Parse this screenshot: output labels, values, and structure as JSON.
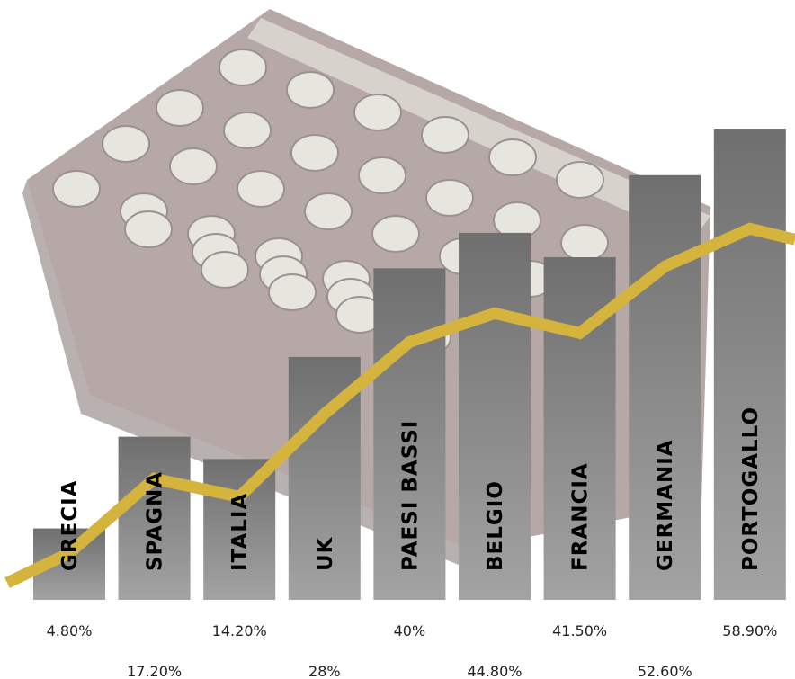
{
  "chart_data": {
    "type": "bar",
    "categories": [
      "GRECIA",
      "SPAGNA",
      "ITALIA",
      "UK",
      "PAESI BASSI",
      "BELGIO",
      "FRANCIA",
      "GERMANIA",
      "PORTOGALLO"
    ],
    "values": [
      4.8,
      17.2,
      14.2,
      28,
      40,
      44.8,
      41.5,
      52.6,
      58.9
    ],
    "value_labels": [
      "4.80%",
      "17.20%",
      "14.20%",
      "28%",
      "40%",
      "44.80%",
      "41.50%",
      "52.60%",
      "58.90%"
    ],
    "overlay_line": true,
    "colors": {
      "bar": "#8a8a8a",
      "bar_highlight": "#5c5c5c",
      "line": "#d4b43c"
    },
    "ylim": [
      0,
      60
    ],
    "grid": false,
    "legend": "none"
  },
  "background": {
    "image": "blister-pack-photo"
  }
}
